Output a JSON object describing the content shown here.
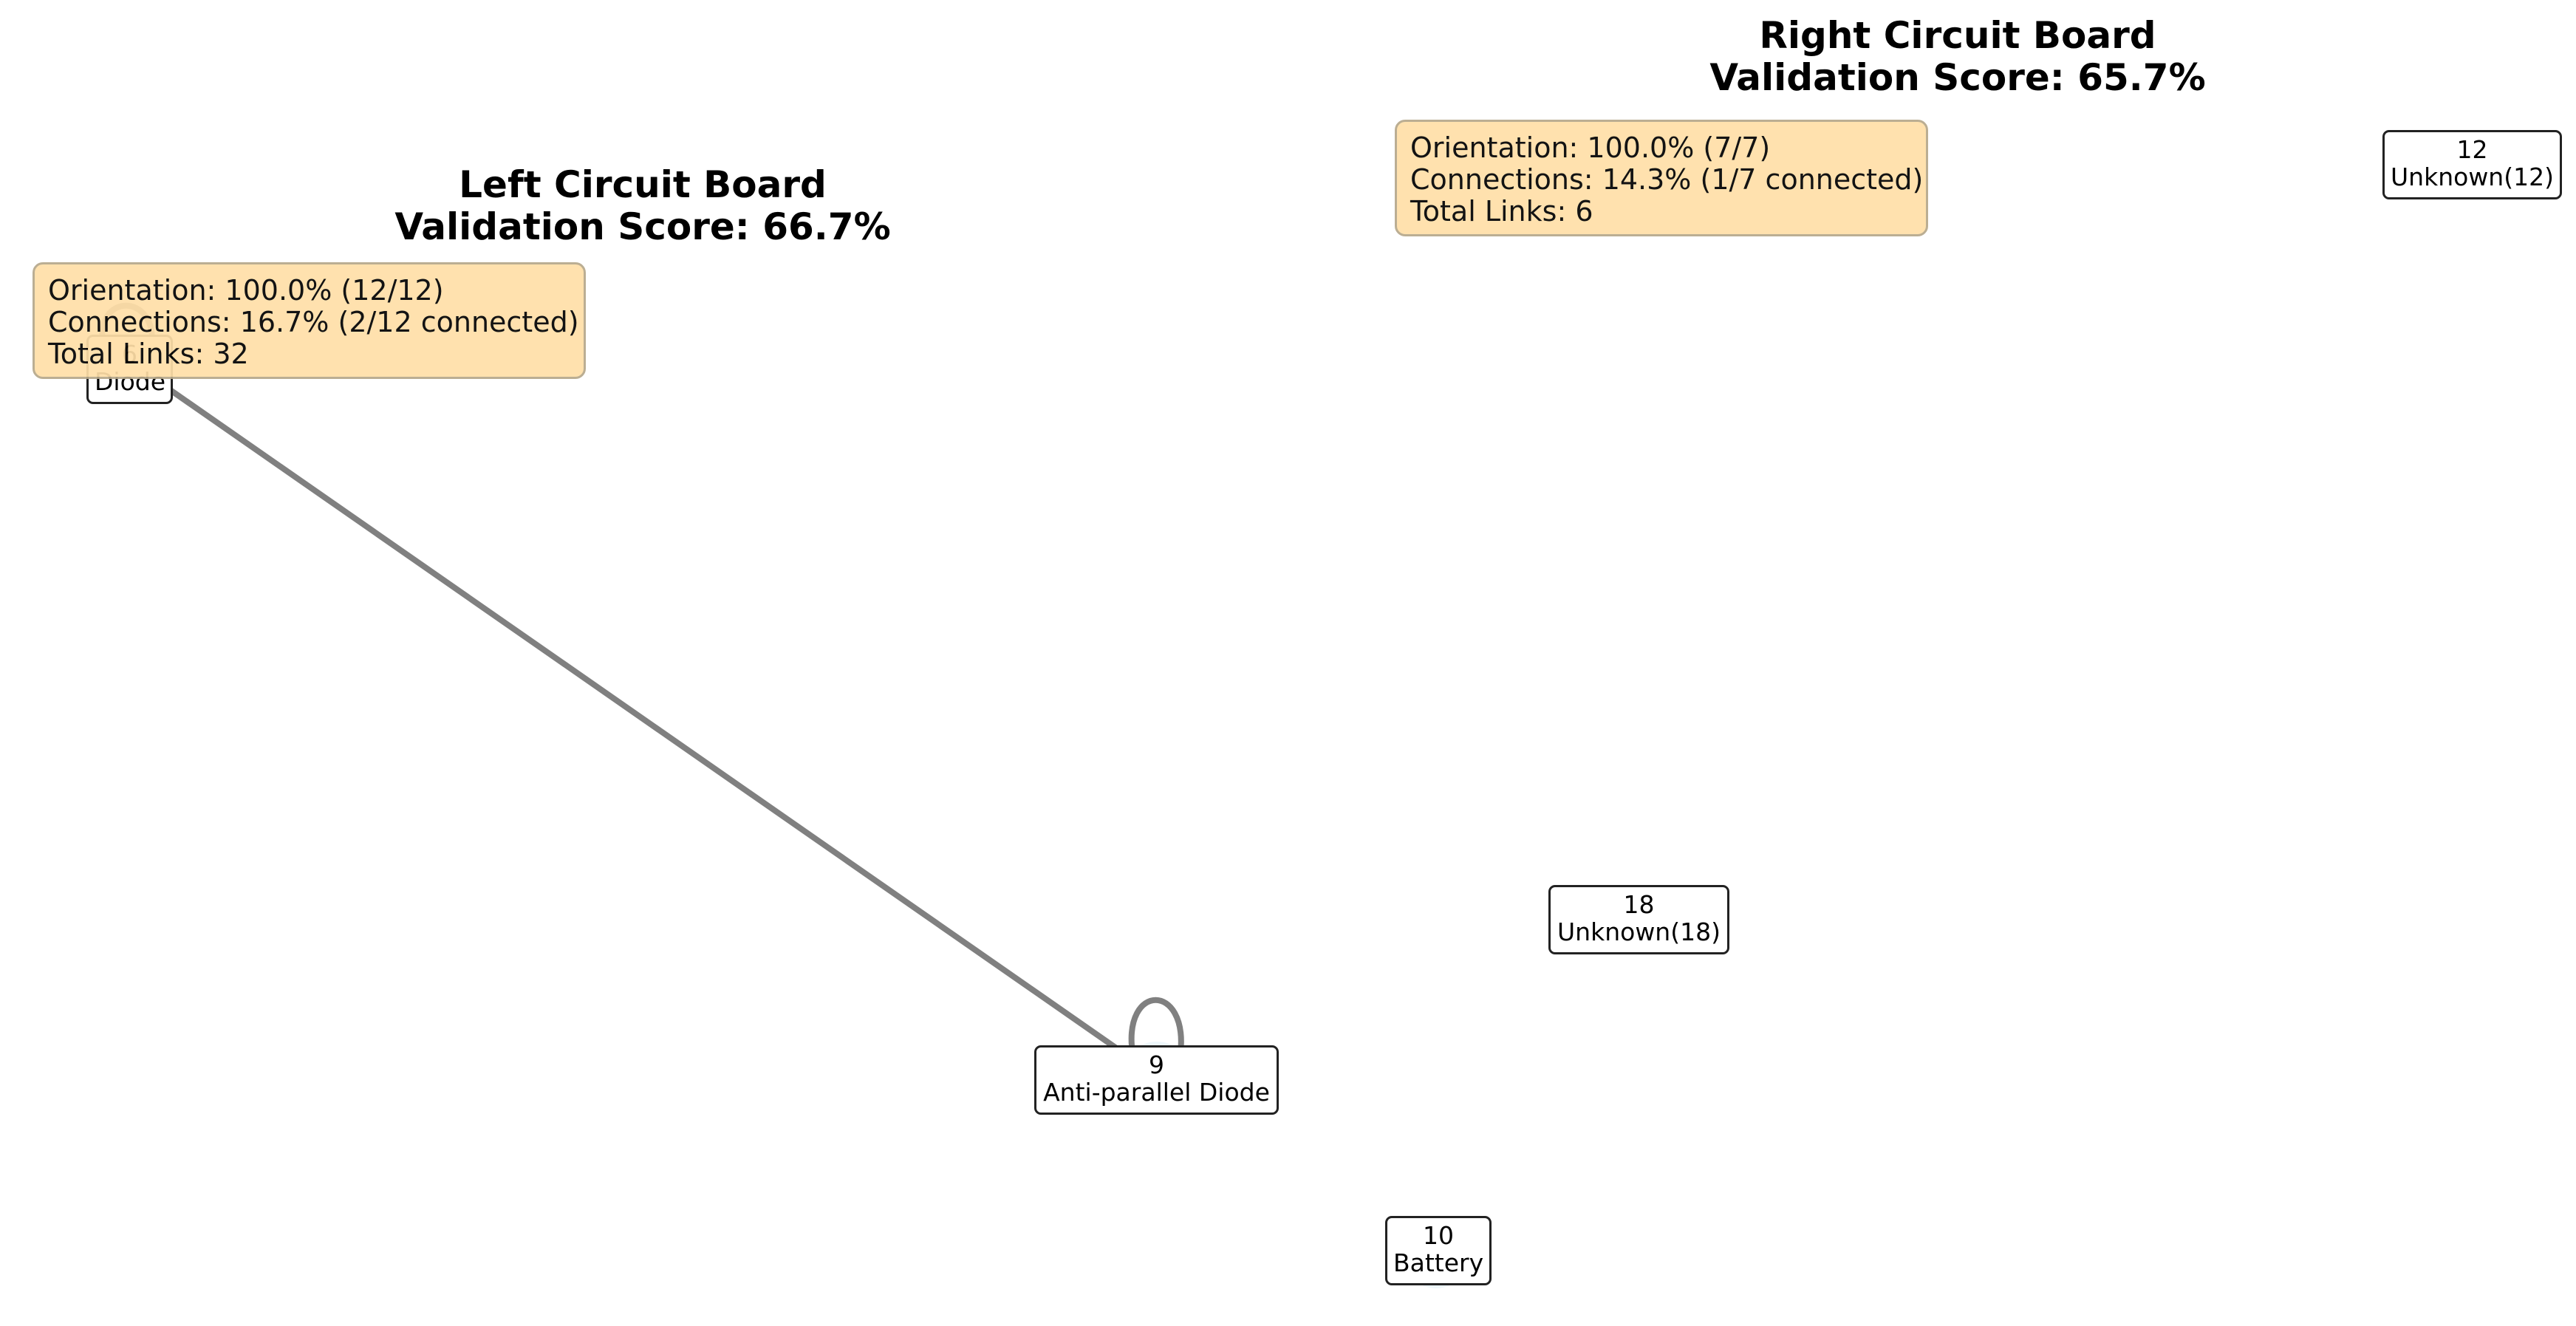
{
  "boards": [
    {
      "id": "left",
      "title": "Left Circuit Board",
      "score_text": "Validation Score: 66.7%",
      "stats": {
        "orientation": "Orientation: 100.0% (12/12)",
        "connections": "Connections: 16.7% (2/12 connected)",
        "links": "Total Links: 32"
      },
      "nodes": [
        {
          "id": "6",
          "label": "Diode"
        },
        {
          "id": "9",
          "label": "Anti-parallel Diode"
        }
      ],
      "edges": [
        {
          "from": "6",
          "to": "9"
        },
        {
          "from": "6",
          "to": "6"
        },
        {
          "from": "9",
          "to": "9"
        }
      ]
    },
    {
      "id": "right",
      "title": "Right Circuit Board",
      "score_text": "Validation Score: 65.7%",
      "stats": {
        "orientation": "Orientation: 100.0% (7/7)",
        "connections": "Connections: 14.3% (1/7 connected)",
        "links": "Total Links: 6"
      },
      "nodes": [
        {
          "id": "12",
          "label": "Unknown(12)"
        },
        {
          "id": "18",
          "label": "Unknown(18)"
        },
        {
          "id": "10",
          "label": "Battery"
        }
      ],
      "edges": []
    }
  ],
  "colors": {
    "edge": "#808080",
    "node_fill": "#eef7fb",
    "stats_fill": "#ffdfa8",
    "stats_border": "#b6a88a",
    "label_border": "#222222"
  }
}
